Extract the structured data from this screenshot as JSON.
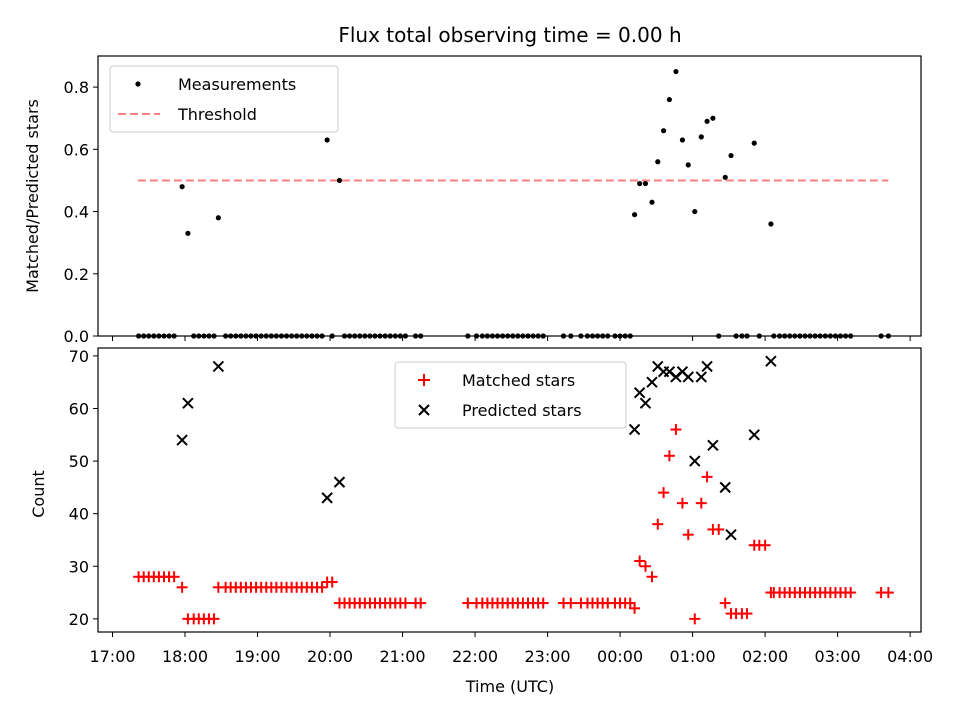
{
  "figure": {
    "title": "Flux total observing time = 0.00 h",
    "xlabel": "Time (UTC)"
  },
  "chart_data": [
    {
      "type": "scatter",
      "ylabel": "Matched/Predicted stars",
      "x_range_hours": [
        16.8,
        28.15
      ],
      "ylim": [
        0,
        0.9
      ],
      "yticks": [
        0.0,
        0.2,
        0.4,
        0.6,
        0.8
      ],
      "ytick_labels": [
        "0.0",
        "0.2",
        "0.4",
        "0.6",
        "0.8"
      ],
      "grid": false,
      "legend": "upper-left",
      "threshold": {
        "name": "Threshold",
        "value": 0.5,
        "x_from": 17.35,
        "x_to": 27.7,
        "color": "#ff7f7f",
        "style": "dashed"
      },
      "series": [
        {
          "name": "Measurements",
          "marker": "dot",
          "color": "#000000",
          "points": [
            [
              17.36,
              0
            ],
            [
              17.43,
              0
            ],
            [
              17.5,
              0
            ],
            [
              17.57,
              0
            ],
            [
              17.64,
              0
            ],
            [
              17.71,
              0
            ],
            [
              17.78,
              0
            ],
            [
              17.85,
              0
            ],
            [
              17.96,
              0.48
            ],
            [
              18.04,
              0.33
            ],
            [
              18.12,
              0
            ],
            [
              18.19,
              0
            ],
            [
              18.26,
              0
            ],
            [
              18.33,
              0
            ],
            [
              18.4,
              0
            ],
            [
              18.46,
              0.38
            ],
            [
              18.56,
              0
            ],
            [
              18.63,
              0
            ],
            [
              18.7,
              0
            ],
            [
              18.77,
              0
            ],
            [
              18.84,
              0
            ],
            [
              18.91,
              0
            ],
            [
              18.98,
              0
            ],
            [
              19.05,
              0
            ],
            [
              19.12,
              0
            ],
            [
              19.19,
              0
            ],
            [
              19.26,
              0
            ],
            [
              19.33,
              0
            ],
            [
              19.4,
              0
            ],
            [
              19.47,
              0
            ],
            [
              19.54,
              0
            ],
            [
              19.61,
              0
            ],
            [
              19.68,
              0
            ],
            [
              19.75,
              0
            ],
            [
              19.82,
              0
            ],
            [
              19.89,
              0
            ],
            [
              19.96,
              0.63
            ],
            [
              20.03,
              0
            ],
            [
              20.13,
              0.5
            ],
            [
              20.2,
              0
            ],
            [
              20.27,
              0
            ],
            [
              20.34,
              0
            ],
            [
              20.41,
              0
            ],
            [
              20.48,
              0
            ],
            [
              20.55,
              0
            ],
            [
              20.62,
              0
            ],
            [
              20.69,
              0
            ],
            [
              20.76,
              0
            ],
            [
              20.83,
              0
            ],
            [
              20.9,
              0
            ],
            [
              20.97,
              0
            ],
            [
              21.04,
              0
            ],
            [
              21.18,
              0
            ],
            [
              21.25,
              0
            ],
            [
              21.9,
              0
            ],
            [
              22.02,
              0
            ],
            [
              22.1,
              0
            ],
            [
              22.17,
              0
            ],
            [
              22.24,
              0
            ],
            [
              22.31,
              0
            ],
            [
              22.38,
              0
            ],
            [
              22.45,
              0
            ],
            [
              22.52,
              0
            ],
            [
              22.59,
              0
            ],
            [
              22.66,
              0
            ],
            [
              22.73,
              0
            ],
            [
              22.8,
              0
            ],
            [
              22.87,
              0
            ],
            [
              22.94,
              0
            ],
            [
              23.22,
              0
            ],
            [
              23.32,
              0
            ],
            [
              23.46,
              0
            ],
            [
              23.55,
              0
            ],
            [
              23.62,
              0
            ],
            [
              23.69,
              0
            ],
            [
              23.76,
              0
            ],
            [
              23.83,
              0
            ],
            [
              23.93,
              0
            ],
            [
              24.0,
              0
            ],
            [
              24.07,
              0
            ],
            [
              24.14,
              0
            ],
            [
              24.2,
              0.39
            ],
            [
              24.27,
              0.49
            ],
            [
              24.35,
              0.49
            ],
            [
              24.44,
              0.43
            ],
            [
              24.52,
              0.56
            ],
            [
              24.6,
              0.66
            ],
            [
              24.68,
              0.76
            ],
            [
              24.77,
              0.85
            ],
            [
              24.86,
              0.63
            ],
            [
              24.94,
              0.55
            ],
            [
              25.03,
              0.4
            ],
            [
              25.12,
              0.64
            ],
            [
              25.2,
              0.69
            ],
            [
              25.28,
              0.7
            ],
            [
              25.36,
              0
            ],
            [
              25.45,
              0.51
            ],
            [
              25.53,
              0.58
            ],
            [
              25.6,
              0
            ],
            [
              25.68,
              0
            ],
            [
              25.75,
              0
            ],
            [
              25.85,
              0.62
            ],
            [
              25.92,
              0
            ],
            [
              26.08,
              0.36
            ],
            [
              26.12,
              0
            ],
            [
              26.2,
              0
            ],
            [
              26.27,
              0
            ],
            [
              26.34,
              0
            ],
            [
              26.41,
              0
            ],
            [
              26.48,
              0
            ],
            [
              26.55,
              0
            ],
            [
              26.62,
              0
            ],
            [
              26.69,
              0
            ],
            [
              26.76,
              0
            ],
            [
              26.83,
              0
            ],
            [
              26.9,
              0
            ],
            [
              26.97,
              0
            ],
            [
              27.04,
              0
            ],
            [
              27.11,
              0
            ],
            [
              27.18,
              0
            ],
            [
              27.6,
              0
            ],
            [
              27.7,
              0
            ]
          ]
        }
      ]
    },
    {
      "type": "scatter",
      "ylabel": "Count",
      "x_range_hours": [
        16.8,
        28.15
      ],
      "ylim": [
        17.5,
        71.5
      ],
      "yticks": [
        20,
        30,
        40,
        50,
        60,
        70
      ],
      "ytick_labels": [
        "20",
        "30",
        "40",
        "50",
        "60",
        "70"
      ],
      "xticks": [
        17,
        18,
        19,
        20,
        21,
        22,
        23,
        24,
        25,
        26,
        27,
        28
      ],
      "xtick_labels": [
        "17:00",
        "18:00",
        "19:00",
        "20:00",
        "21:00",
        "22:00",
        "23:00",
        "00:00",
        "01:00",
        "02:00",
        "03:00",
        "04:00"
      ],
      "grid": false,
      "legend": "upper-center",
      "series": [
        {
          "name": "Matched stars",
          "marker": "plus",
          "color": "#ff0000",
          "points": [
            [
              17.36,
              28
            ],
            [
              17.43,
              28
            ],
            [
              17.5,
              28
            ],
            [
              17.57,
              28
            ],
            [
              17.64,
              28
            ],
            [
              17.71,
              28
            ],
            [
              17.78,
              28
            ],
            [
              17.85,
              28
            ],
            [
              17.96,
              26
            ],
            [
              18.04,
              20
            ],
            [
              18.12,
              20
            ],
            [
              18.19,
              20
            ],
            [
              18.26,
              20
            ],
            [
              18.33,
              20
            ],
            [
              18.4,
              20
            ],
            [
              18.46,
              26
            ],
            [
              18.56,
              26
            ],
            [
              18.63,
              26
            ],
            [
              18.7,
              26
            ],
            [
              18.77,
              26
            ],
            [
              18.84,
              26
            ],
            [
              18.91,
              26
            ],
            [
              18.98,
              26
            ],
            [
              19.05,
              26
            ],
            [
              19.12,
              26
            ],
            [
              19.19,
              26
            ],
            [
              19.26,
              26
            ],
            [
              19.33,
              26
            ],
            [
              19.4,
              26
            ],
            [
              19.47,
              26
            ],
            [
              19.54,
              26
            ],
            [
              19.61,
              26
            ],
            [
              19.68,
              26
            ],
            [
              19.75,
              26
            ],
            [
              19.82,
              26
            ],
            [
              19.89,
              26
            ],
            [
              19.96,
              27
            ],
            [
              20.03,
              27
            ],
            [
              20.13,
              23
            ],
            [
              20.2,
              23
            ],
            [
              20.27,
              23
            ],
            [
              20.34,
              23
            ],
            [
              20.41,
              23
            ],
            [
              20.48,
              23
            ],
            [
              20.55,
              23
            ],
            [
              20.62,
              23
            ],
            [
              20.69,
              23
            ],
            [
              20.76,
              23
            ],
            [
              20.83,
              23
            ],
            [
              20.9,
              23
            ],
            [
              20.97,
              23
            ],
            [
              21.04,
              23
            ],
            [
              21.18,
              23
            ],
            [
              21.25,
              23
            ],
            [
              21.9,
              23
            ],
            [
              22.02,
              23
            ],
            [
              22.1,
              23
            ],
            [
              22.17,
              23
            ],
            [
              22.24,
              23
            ],
            [
              22.31,
              23
            ],
            [
              22.38,
              23
            ],
            [
              22.45,
              23
            ],
            [
              22.52,
              23
            ],
            [
              22.59,
              23
            ],
            [
              22.66,
              23
            ],
            [
              22.73,
              23
            ],
            [
              22.8,
              23
            ],
            [
              22.87,
              23
            ],
            [
              22.94,
              23
            ],
            [
              23.22,
              23
            ],
            [
              23.32,
              23
            ],
            [
              23.46,
              23
            ],
            [
              23.55,
              23
            ],
            [
              23.62,
              23
            ],
            [
              23.69,
              23
            ],
            [
              23.76,
              23
            ],
            [
              23.83,
              23
            ],
            [
              23.93,
              23
            ],
            [
              24.0,
              23
            ],
            [
              24.07,
              23
            ],
            [
              24.14,
              23
            ],
            [
              24.2,
              22
            ],
            [
              24.27,
              31
            ],
            [
              24.35,
              30
            ],
            [
              24.44,
              28
            ],
            [
              24.52,
              38
            ],
            [
              24.6,
              44
            ],
            [
              24.68,
              51
            ],
            [
              24.77,
              56
            ],
            [
              24.86,
              42
            ],
            [
              24.94,
              36
            ],
            [
              25.03,
              20
            ],
            [
              25.12,
              42
            ],
            [
              25.2,
              47
            ],
            [
              25.28,
              37
            ],
            [
              25.36,
              37
            ],
            [
              25.45,
              23
            ],
            [
              25.53,
              21
            ],
            [
              25.6,
              21
            ],
            [
              25.68,
              21
            ],
            [
              25.75,
              21
            ],
            [
              25.85,
              34
            ],
            [
              25.92,
              34
            ],
            [
              26.0,
              34
            ],
            [
              26.08,
              25
            ],
            [
              26.12,
              25
            ],
            [
              26.2,
              25
            ],
            [
              26.27,
              25
            ],
            [
              26.34,
              25
            ],
            [
              26.41,
              25
            ],
            [
              26.48,
              25
            ],
            [
              26.55,
              25
            ],
            [
              26.62,
              25
            ],
            [
              26.69,
              25
            ],
            [
              26.76,
              25
            ],
            [
              26.83,
              25
            ],
            [
              26.9,
              25
            ],
            [
              26.97,
              25
            ],
            [
              27.04,
              25
            ],
            [
              27.11,
              25
            ],
            [
              27.18,
              25
            ],
            [
              27.6,
              25
            ],
            [
              27.7,
              25
            ]
          ]
        },
        {
          "name": "Predicted stars",
          "marker": "x",
          "color": "#000000",
          "points": [
            [
              17.96,
              54
            ],
            [
              18.04,
              61
            ],
            [
              18.46,
              68
            ],
            [
              19.96,
              43
            ],
            [
              20.13,
              46
            ],
            [
              24.2,
              56
            ],
            [
              24.27,
              63
            ],
            [
              24.35,
              61
            ],
            [
              24.44,
              65
            ],
            [
              24.52,
              68
            ],
            [
              24.6,
              67
            ],
            [
              24.68,
              67
            ],
            [
              24.77,
              66
            ],
            [
              24.86,
              67
            ],
            [
              24.94,
              66
            ],
            [
              25.03,
              50
            ],
            [
              25.12,
              66
            ],
            [
              25.2,
              68
            ],
            [
              25.28,
              53
            ],
            [
              25.45,
              45
            ],
            [
              25.53,
              36
            ],
            [
              25.85,
              55
            ],
            [
              26.08,
              69
            ]
          ]
        }
      ]
    }
  ]
}
